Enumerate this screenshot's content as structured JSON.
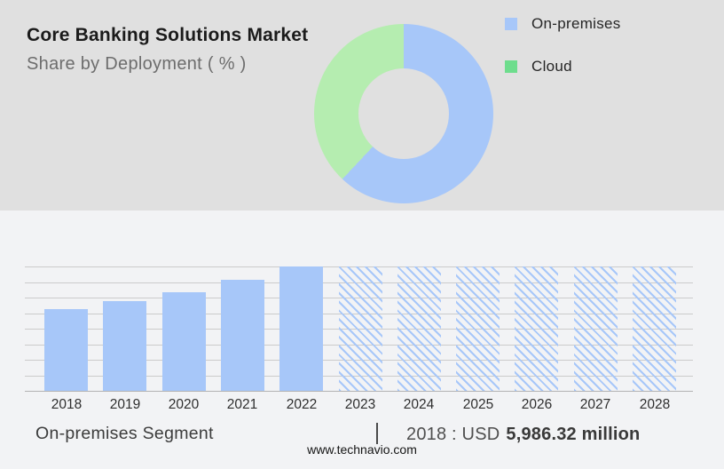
{
  "header": {
    "title": "Core Banking Solutions Market",
    "subtitle": "Share by Deployment ( % )"
  },
  "colors": {
    "top_bg": "#e0e0e0",
    "bottom_bg": "#f2f3f5",
    "on_premises_blue": "#a7c7f9",
    "donut_cloud_green": "#b5edb0",
    "legend_cloud_green": "#6edd8d",
    "gridline": "#cbcbcb",
    "axis_line": "#b3b3b3"
  },
  "chart_data": [
    {
      "type": "pie",
      "title": "Share by Deployment ( % )",
      "labels": [
        "On-premises",
        "Cloud"
      ],
      "values": [
        62,
        38
      ],
      "colors": [
        "#a7c7f9",
        "#b5edb0"
      ],
      "donut": true,
      "start_angle_deg": 0,
      "legend_position": "right"
    },
    {
      "type": "bar",
      "title": "On-premises Segment",
      "categories": [
        "2018",
        "2019",
        "2020",
        "2021",
        "2022",
        "2023",
        "2024",
        "2025",
        "2026",
        "2027",
        "2028"
      ],
      "values_pct_of_max": [
        66,
        72,
        79,
        89,
        100,
        100,
        100,
        100,
        100,
        100,
        100
      ],
      "forecast_years": [
        "2023",
        "2024",
        "2025",
        "2026",
        "2027",
        "2028"
      ],
      "known_value": {
        "year": "2018",
        "value": "USD 5,986.32 million"
      },
      "xlabel": "",
      "ylabel": "",
      "grid": true,
      "bar_color": "#a7c7f9",
      "forecast_style": "diagonal-hatch"
    }
  ],
  "footer": {
    "segment_label": "On-premises Segment",
    "divider": "|",
    "stat_prefix": "2018 : USD",
    "stat_value": "5,986.32 million"
  },
  "watermark": "www.technavio.com"
}
